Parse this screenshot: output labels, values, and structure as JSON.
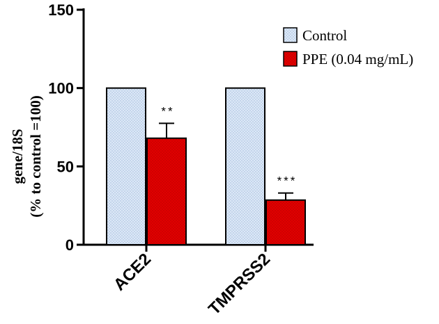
{
  "chart_data": {
    "type": "bar",
    "categories": [
      "ACE2",
      "TMPRSS2"
    ],
    "series": [
      {
        "name": "Control",
        "values": [
          100,
          100
        ],
        "errors": [
          0,
          0
        ],
        "color": "#dce8f7",
        "pattern": "dotted"
      },
      {
        "name": "PPE (0.04 mg/mL)",
        "values": [
          68,
          28.5
        ],
        "errors": [
          9.5,
          4.5
        ],
        "color": "#e00000",
        "pattern": "dotted"
      }
    ],
    "significance": [
      {
        "category": "ACE2",
        "series": "PPE (0.04 mg/mL)",
        "label": "**"
      },
      {
        "category": "TMPRSS2",
        "series": "PPE (0.04 mg/mL)",
        "label": "***"
      }
    ],
    "ylabel_line1": "gene/18S",
    "ylabel_line2": "(% to control =100)",
    "ylim": [
      0,
      150
    ],
    "yticks": [
      0,
      50,
      100,
      150
    ],
    "legend_position": "top-right",
    "grid": false
  }
}
